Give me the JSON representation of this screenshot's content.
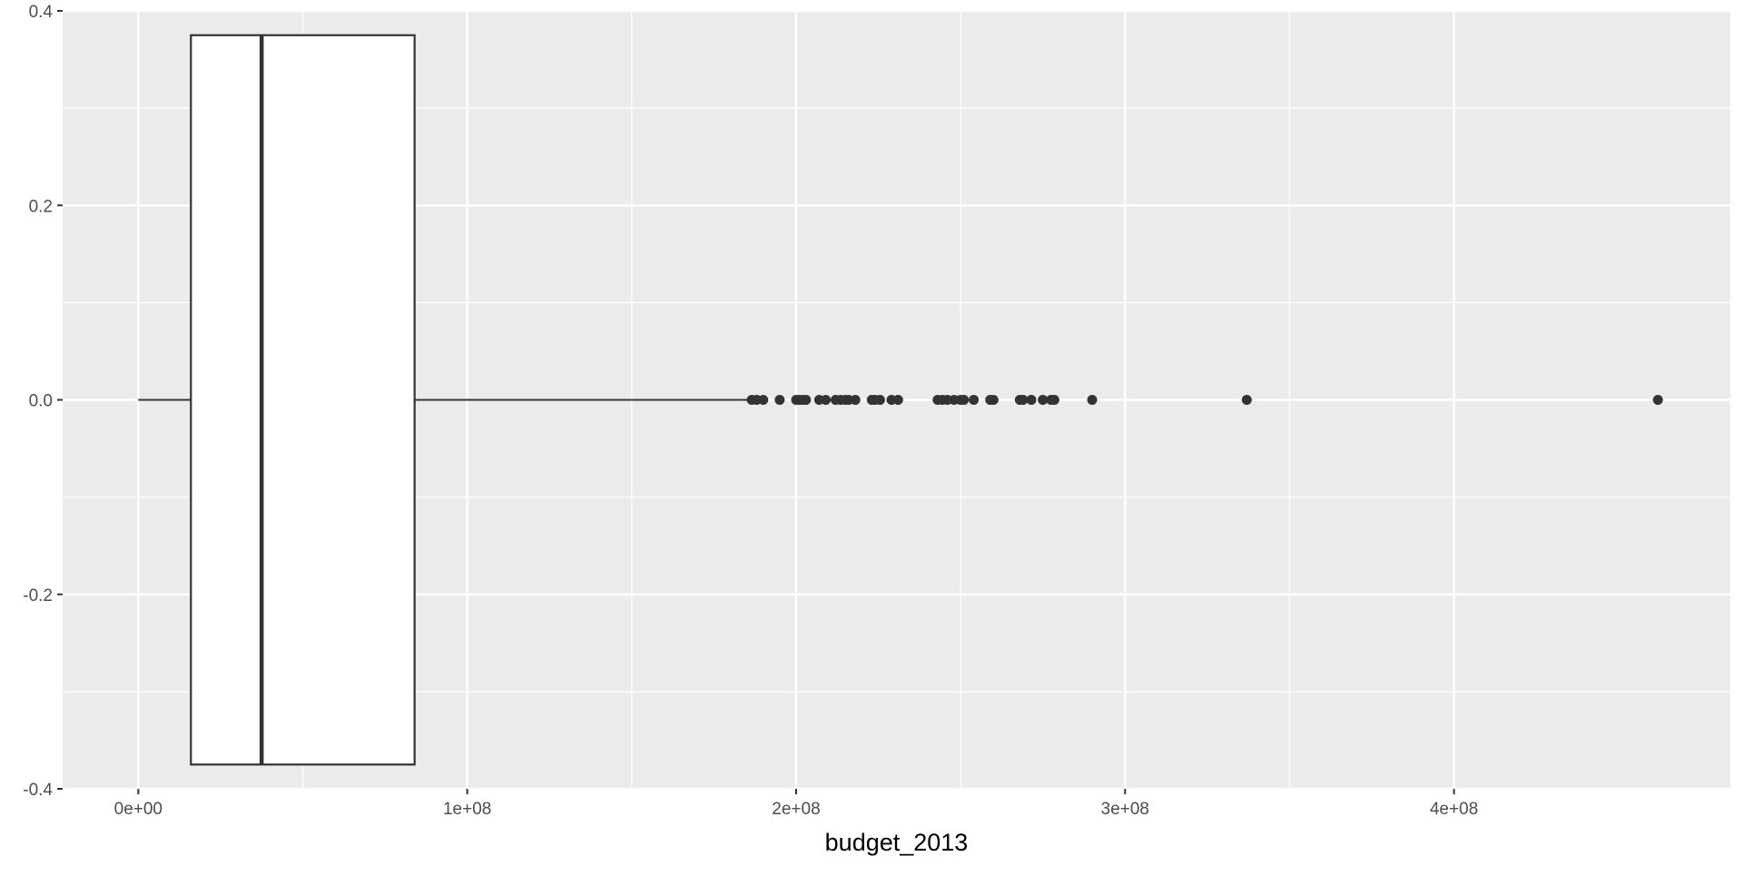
{
  "chart_data": {
    "type": "boxplot",
    "orientation": "horizontal",
    "title": "",
    "xlabel": "budget_2013",
    "ylabel": "",
    "xlim": [
      -23000000,
      484000000
    ],
    "ylim": [
      -0.4,
      0.4
    ],
    "x_ticks": [
      {
        "value": 0,
        "label": "0e+00"
      },
      {
        "value": 100000000,
        "label": "1e+08"
      },
      {
        "value": 200000000,
        "label": "2e+08"
      },
      {
        "value": 300000000,
        "label": "3e+08"
      },
      {
        "value": 400000000,
        "label": "4e+08"
      }
    ],
    "y_ticks": [
      {
        "value": 0.4,
        "label": "0.4"
      },
      {
        "value": 0.2,
        "label": "0.2"
      },
      {
        "value": 0.0,
        "label": "0.0"
      },
      {
        "value": -0.2,
        "label": "-0.2"
      },
      {
        "value": -0.4,
        "label": "-0.4"
      }
    ],
    "box": {
      "whisker_low": 0,
      "q1": 16000000,
      "median": 37500000,
      "q3": 84000000,
      "whisker_high": 186000000,
      "y_center": 0,
      "half_width": 0.375
    },
    "outliers": [
      186500000,
      188000000,
      190000000,
      195000000,
      200000000,
      201000000,
      202000000,
      203000000,
      207000000,
      209000000,
      212000000,
      213500000,
      215000000,
      216000000,
      218000000,
      223000000,
      224000000,
      225500000,
      229000000,
      231000000,
      243000000,
      244500000,
      246000000,
      248000000,
      250000000,
      251000000,
      254000000,
      259000000,
      260000000,
      268000000,
      269000000,
      271500000,
      275000000,
      277500000,
      278500000,
      290000000,
      337000000,
      462000000
    ],
    "grid": true,
    "legend": "none",
    "colors": {
      "panel_background": "#ebebeb",
      "grid_major": "#ffffff",
      "box_fill": "#ffffff",
      "box_stroke": "#333333",
      "outlier": "#333333",
      "tick_text": "#4d4d4d",
      "axis_title": "#000000"
    }
  }
}
